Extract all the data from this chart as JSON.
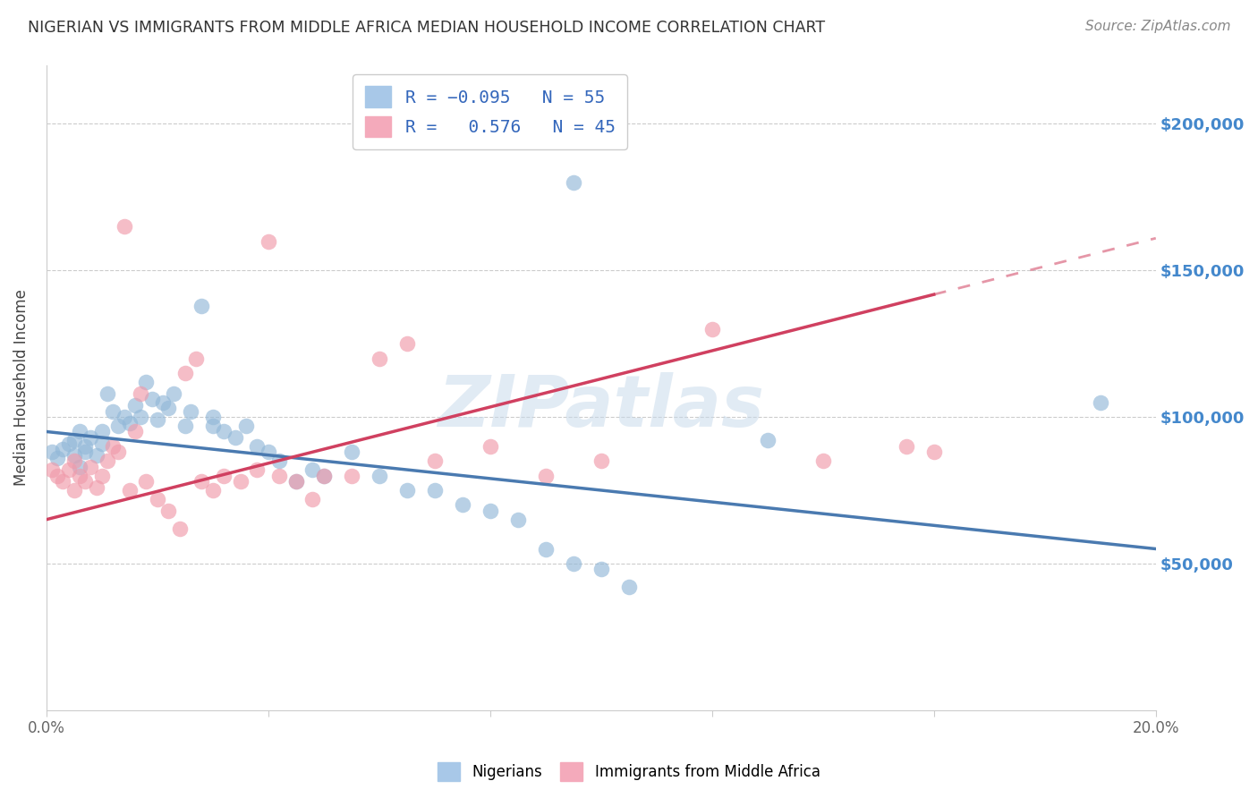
{
  "title": "NIGERIAN VS IMMIGRANTS FROM MIDDLE AFRICA MEDIAN HOUSEHOLD INCOME CORRELATION CHART",
  "source": "Source: ZipAtlas.com",
  "ylabel": "Median Household Income",
  "ytick_labels": [
    "$50,000",
    "$100,000",
    "$150,000",
    "$200,000"
  ],
  "ytick_values": [
    50000,
    100000,
    150000,
    200000
  ],
  "ylim": [
    0,
    220000
  ],
  "xlim": [
    0,
    0.2
  ],
  "blue_color": "#92b8d8",
  "pink_color": "#f09aaa",
  "blue_line_color": "#4a7ab0",
  "pink_line_color": "#d04060",
  "watermark": "ZIPatlas",
  "blue_scatter": [
    [
      0.001,
      88000
    ],
    [
      0.002,
      86000
    ],
    [
      0.003,
      89000
    ],
    [
      0.004,
      91000
    ],
    [
      0.005,
      87000
    ],
    [
      0.005,
      92000
    ],
    [
      0.006,
      95000
    ],
    [
      0.006,
      83000
    ],
    [
      0.007,
      90000
    ],
    [
      0.007,
      88000
    ],
    [
      0.008,
      93000
    ],
    [
      0.009,
      87000
    ],
    [
      0.01,
      91000
    ],
    [
      0.01,
      95000
    ],
    [
      0.011,
      108000
    ],
    [
      0.012,
      102000
    ],
    [
      0.013,
      97000
    ],
    [
      0.014,
      100000
    ],
    [
      0.015,
      98000
    ],
    [
      0.016,
      104000
    ],
    [
      0.017,
      100000
    ],
    [
      0.018,
      112000
    ],
    [
      0.019,
      106000
    ],
    [
      0.02,
      99000
    ],
    [
      0.021,
      105000
    ],
    [
      0.022,
      103000
    ],
    [
      0.023,
      108000
    ],
    [
      0.025,
      97000
    ],
    [
      0.026,
      102000
    ],
    [
      0.028,
      138000
    ],
    [
      0.03,
      100000
    ],
    [
      0.03,
      97000
    ],
    [
      0.032,
      95000
    ],
    [
      0.034,
      93000
    ],
    [
      0.036,
      97000
    ],
    [
      0.038,
      90000
    ],
    [
      0.04,
      88000
    ],
    [
      0.042,
      85000
    ],
    [
      0.045,
      78000
    ],
    [
      0.048,
      82000
    ],
    [
      0.05,
      80000
    ],
    [
      0.055,
      88000
    ],
    [
      0.06,
      80000
    ],
    [
      0.065,
      75000
    ],
    [
      0.07,
      75000
    ],
    [
      0.075,
      70000
    ],
    [
      0.08,
      68000
    ],
    [
      0.085,
      65000
    ],
    [
      0.09,
      55000
    ],
    [
      0.095,
      50000
    ],
    [
      0.095,
      180000
    ],
    [
      0.1,
      48000
    ],
    [
      0.105,
      42000
    ],
    [
      0.13,
      92000
    ],
    [
      0.19,
      105000
    ]
  ],
  "pink_scatter": [
    [
      0.001,
      82000
    ],
    [
      0.002,
      80000
    ],
    [
      0.003,
      78000
    ],
    [
      0.004,
      82000
    ],
    [
      0.005,
      85000
    ],
    [
      0.005,
      75000
    ],
    [
      0.006,
      80000
    ],
    [
      0.007,
      78000
    ],
    [
      0.008,
      83000
    ],
    [
      0.009,
      76000
    ],
    [
      0.01,
      80000
    ],
    [
      0.011,
      85000
    ],
    [
      0.012,
      90000
    ],
    [
      0.013,
      88000
    ],
    [
      0.014,
      165000
    ],
    [
      0.015,
      75000
    ],
    [
      0.016,
      95000
    ],
    [
      0.017,
      108000
    ],
    [
      0.018,
      78000
    ],
    [
      0.02,
      72000
    ],
    [
      0.022,
      68000
    ],
    [
      0.024,
      62000
    ],
    [
      0.025,
      115000
    ],
    [
      0.027,
      120000
    ],
    [
      0.028,
      78000
    ],
    [
      0.03,
      75000
    ],
    [
      0.032,
      80000
    ],
    [
      0.035,
      78000
    ],
    [
      0.038,
      82000
    ],
    [
      0.04,
      160000
    ],
    [
      0.042,
      80000
    ],
    [
      0.045,
      78000
    ],
    [
      0.048,
      72000
    ],
    [
      0.05,
      80000
    ],
    [
      0.055,
      80000
    ],
    [
      0.06,
      120000
    ],
    [
      0.065,
      125000
    ],
    [
      0.07,
      85000
    ],
    [
      0.08,
      90000
    ],
    [
      0.09,
      80000
    ],
    [
      0.1,
      85000
    ],
    [
      0.12,
      130000
    ],
    [
      0.14,
      85000
    ],
    [
      0.155,
      90000
    ],
    [
      0.16,
      88000
    ]
  ],
  "blue_intercept": 95000,
  "blue_slope": -200000,
  "pink_intercept": 65000,
  "pink_slope": 480000
}
